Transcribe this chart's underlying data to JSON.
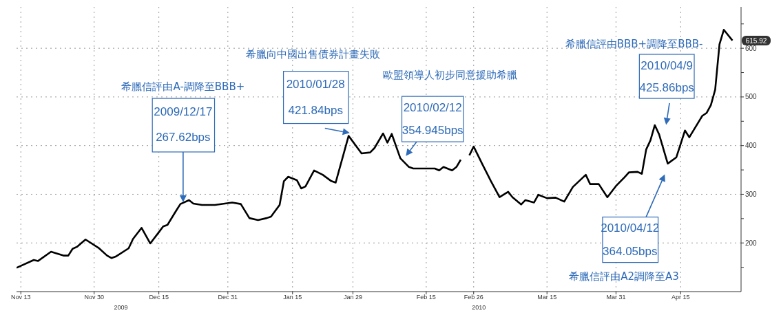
{
  "chart_data": {
    "type": "line",
    "x": [
      "2009-11-12",
      "2009-11-16",
      "2009-11-17",
      "2009-11-20",
      "2009-11-23",
      "2009-11-24",
      "2009-11-25",
      "2009-11-26",
      "2009-11-28",
      "2009-12-01",
      "2009-12-03",
      "2009-12-04",
      "2009-12-05",
      "2009-12-08",
      "2009-12-09",
      "2009-12-11",
      "2009-12-13",
      "2009-12-15",
      "2009-12-16",
      "2009-12-17",
      "2009-12-19",
      "2009-12-20",
      "2009-12-22",
      "2009-12-23",
      "2009-12-25",
      "2009-12-28",
      "2010-01-01",
      "2010-01-03",
      "2010-01-05",
      "2010-01-07",
      "2010-01-09",
      "2010-01-10",
      "2010-01-12",
      "2010-01-13",
      "2010-01-14",
      "2010-01-16",
      "2010-01-17",
      "2010-01-18",
      "2010-01-20",
      "2010-01-22",
      "2010-01-24",
      "2010-01-25",
      "2010-01-28",
      "2010-01-31",
      "2010-02-02",
      "2010-02-03",
      "2010-02-05",
      "2010-02-06",
      "2010-02-07",
      "2010-02-09",
      "2010-02-11",
      "2010-02-12",
      "2010-02-17",
      "2010-02-18",
      "2010-02-19",
      "2010-02-21",
      "2010-02-22",
      "2010-02-23",
      "2010-02-24",
      "2010-02-25",
      "2010-02-26",
      "2010-02-28",
      "2010-03-02",
      "2010-03-04",
      "2010-03-06",
      "2010-03-07",
      "2010-03-09",
      "2010-03-10",
      "2010-03-12",
      "2010-03-13",
      "2010-03-15",
      "2010-03-17",
      "2010-03-19",
      "2010-03-21",
      "2010-03-24",
      "2010-03-25",
      "2010-03-27",
      "2010-03-29",
      "2010-03-31",
      "2010-04-02",
      "2010-04-03",
      "2010-04-05",
      "2010-04-06",
      "2010-04-07",
      "2010-04-08",
      "2010-04-09",
      "2010-04-10",
      "2010-04-12",
      "2010-04-14",
      "2010-04-16",
      "2010-04-17",
      "2010-04-20",
      "2010-04-21",
      "2010-04-22",
      "2010-04-23",
      "2010-04-24",
      "2010-04-25",
      "2010-04-27"
    ],
    "series": [
      {
        "color": "#000000",
        "values": [
          149,
          165,
          163,
          182,
          174,
          174,
          188,
          192,
          207,
          190,
          174,
          169,
          172,
          189,
          208,
          231,
          199,
          222,
          234,
          237,
          266,
          280,
          288,
          281,
          278,
          278,
          283,
          280,
          251,
          247,
          251,
          254,
          278,
          327,
          336,
          329,
          312,
          316,
          349,
          340,
          327,
          324,
          420,
          384,
          386,
          395,
          425,
          406,
          424,
          374,
          356,
          353,
          353,
          349,
          356,
          349,
          356,
          371,
          null,
          380,
          398,
          362,
          327,
          294,
          305,
          294,
          279,
          288,
          283,
          299,
          292,
          293,
          285,
          315,
          340,
          321,
          321,
          294,
          317,
          335,
          345,
          346,
          342,
          392,
          411,
          442,
          423,
          363,
          376,
          431,
          417,
          461,
          467,
          483,
          515,
          608,
          638,
          616
        ]
      }
    ],
    "xlim": [
      "2009-11-12",
      "2010-04-29"
    ],
    "xticks": [
      {
        "value": "2009-11-13",
        "label": "Nov 13"
      },
      {
        "value": "2009-11-30",
        "label": "Nov 30"
      },
      {
        "value": "2009-12-15",
        "label": "Dec 15"
      },
      {
        "value": "2009-12-31",
        "label": "Dec 31"
      },
      {
        "value": "2010-01-15",
        "label": "Jan 15"
      },
      {
        "value": "2010-01-29",
        "label": "Jan 29"
      },
      {
        "value": "2010-02-15",
        "label": "Feb 15"
      },
      {
        "value": "2010-02-26",
        "label": "Feb 26"
      },
      {
        "value": "2010-03-15",
        "label": "Mar 15"
      },
      {
        "value": "2010-03-31",
        "label": "Mar 31"
      },
      {
        "value": "2010-04-15",
        "label": "Apr 15"
      }
    ],
    "ylim": [
      100,
      685
    ],
    "yticks": [
      {
        "value": 150,
        "label": null
      },
      200,
      {
        "value": 250,
        "label": null
      },
      300,
      {
        "value": 350,
        "label": null
      },
      400,
      {
        "value": 450,
        "label": null
      },
      500,
      {
        "value": 550,
        "label": null
      },
      600,
      {
        "value": 650,
        "label": null
      }
    ],
    "grid": true,
    "line_style": "solid",
    "annotations": [
      {
        "text": "615.92",
        "x": "2010-04-27",
        "y": 615.92
      },
      "希臘信評由A-調降至BBB+",
      "2009/12/17",
      "267.62bps",
      "希臘向中國出售債券計畫失敗",
      "2010/01/28",
      "421.84bps",
      "歐盟領導人初步同意援助希臘",
      "2010/02/12",
      "354.945bps",
      "希臘信評由BBB+調降至BBB-",
      "2010/04/9",
      "425.86bps",
      "希臘信評由A2調降至A3",
      "2010/04/12",
      "364.05bps",
      "2009",
      "2010"
    ]
  }
}
